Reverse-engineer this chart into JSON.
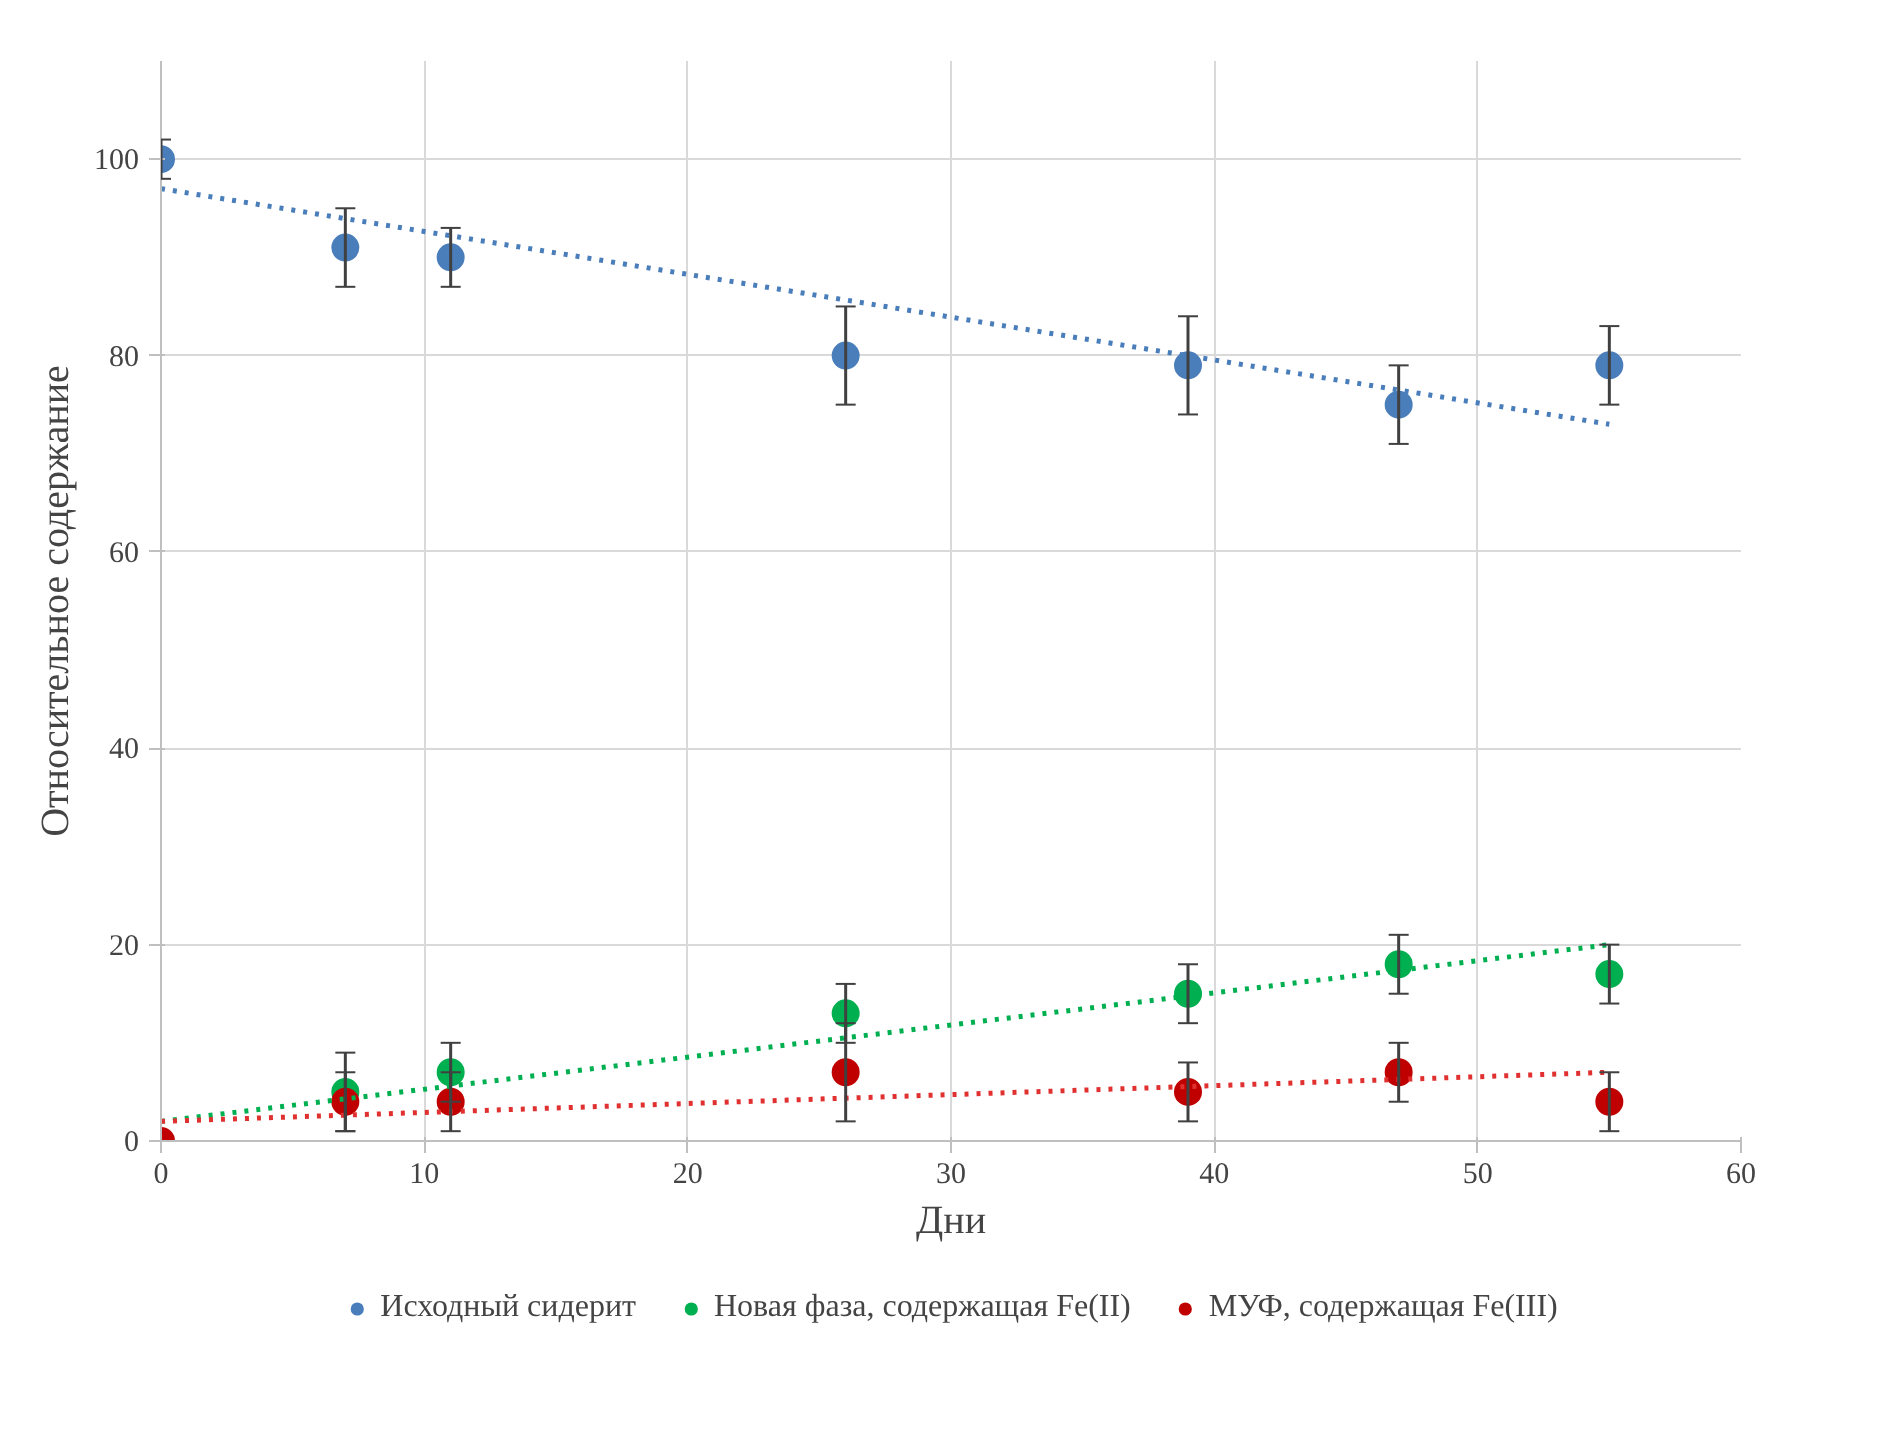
{
  "chart_data": {
    "type": "scatter",
    "xlabel": "Дни",
    "ylabel": "Относительное содержание",
    "xlim": [
      0,
      60
    ],
    "ylim": [
      0,
      110
    ],
    "xticks": [
      0,
      10,
      20,
      30,
      40,
      50,
      60
    ],
    "yticks": [
      0,
      20,
      40,
      60,
      80,
      100
    ],
    "grid": true,
    "legend": "bottom",
    "marker": "circle",
    "series": [
      {
        "name": "Исходный сидерит",
        "color": "#4a7ebb",
        "x": [
          0,
          7,
          11,
          26,
          39,
          47,
          55
        ],
        "values": [
          100,
          91,
          90,
          80,
          79,
          75,
          79
        ],
        "errors": [
          2,
          4,
          3,
          5,
          5,
          4,
          4
        ]
      },
      {
        "name": "Новая фаза, содержащая Fe(II)",
        "color": "#00b050",
        "x": [
          7,
          11,
          26,
          39,
          47,
          55
        ],
        "values": [
          5,
          7,
          13,
          15,
          18,
          17
        ],
        "errors": [
          4,
          3,
          3,
          3,
          3,
          3
        ]
      },
      {
        "name": "МУФ, содержащая Fe(III)",
        "color": "#c00000",
        "x": [
          0,
          7,
          11,
          26,
          39,
          47,
          55
        ],
        "values": [
          0,
          4,
          4,
          7,
          5,
          7,
          4
        ],
        "errors": [
          null,
          3,
          3,
          5,
          3,
          3,
          3
        ]
      },
      {
        "type": "line",
        "color": "#4a7ebb",
        "line_style": "dotted",
        "marker": "none",
        "x": [
          0,
          55
        ],
        "values": [
          97,
          73
        ]
      },
      {
        "type": "line",
        "color": "#00b050",
        "line_style": "dotted",
        "marker": "none",
        "x": [
          0,
          55
        ],
        "values": [
          2,
          20
        ]
      },
      {
        "type": "line",
        "color": "#e03030",
        "line_style": "dotted",
        "marker": "none",
        "x": [
          0,
          55
        ],
        "values": [
          2,
          7
        ]
      }
    ]
  }
}
